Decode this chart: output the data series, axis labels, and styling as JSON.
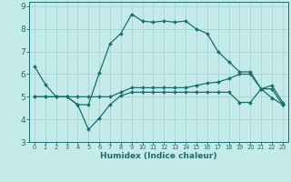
{
  "title": "",
  "xlabel": "Humidex (Indice chaleur)",
  "bg_color": "#c5eaea",
  "grid_color": "#a8d4d4",
  "line_color": "#1a6e6e",
  "xlim": [
    -0.5,
    23.5
  ],
  "ylim": [
    3,
    9.2
  ],
  "xticks": [
    0,
    1,
    2,
    3,
    4,
    5,
    6,
    7,
    8,
    9,
    10,
    11,
    12,
    13,
    14,
    15,
    16,
    17,
    18,
    19,
    20,
    21,
    22,
    23
  ],
  "yticks": [
    3,
    4,
    5,
    6,
    7,
    8,
    9
  ],
  "line1_x": [
    0,
    1,
    2,
    3,
    4,
    5,
    6,
    7,
    8,
    9,
    10,
    11,
    12,
    13,
    14,
    15,
    16,
    17,
    18,
    19,
    20,
    21,
    22,
    23
  ],
  "line1_y": [
    6.35,
    5.55,
    5.0,
    5.0,
    4.65,
    4.65,
    6.05,
    7.35,
    7.8,
    8.65,
    8.35,
    8.3,
    8.35,
    8.3,
    8.35,
    8.0,
    7.8,
    7.0,
    6.55,
    6.1,
    6.1,
    5.35,
    5.35,
    4.65
  ],
  "line2_x": [
    0,
    1,
    2,
    3,
    4,
    5,
    6,
    7,
    8,
    9,
    10,
    11,
    12,
    13,
    14,
    15,
    16,
    17,
    18,
    19,
    20,
    21,
    22,
    23
  ],
  "line2_y": [
    5.0,
    5.0,
    5.0,
    5.0,
    4.65,
    3.55,
    4.05,
    4.65,
    5.05,
    5.2,
    5.2,
    5.2,
    5.2,
    5.2,
    5.2,
    5.2,
    5.2,
    5.2,
    5.2,
    4.75,
    4.75,
    5.35,
    4.95,
    4.65
  ],
  "line3_x": [
    0,
    1,
    2,
    3,
    4,
    5,
    6,
    7,
    8,
    9,
    10,
    11,
    12,
    13,
    14,
    15,
    16,
    17,
    18,
    19,
    20,
    21,
    22,
    23
  ],
  "line3_y": [
    5.0,
    5.0,
    5.0,
    5.0,
    5.0,
    5.0,
    5.0,
    5.0,
    5.2,
    5.4,
    5.4,
    5.4,
    5.4,
    5.4,
    5.4,
    5.5,
    5.6,
    5.65,
    5.8,
    6.0,
    6.0,
    5.35,
    5.5,
    4.75
  ],
  "xlabel_fontsize": 6.5,
  "xtick_fontsize": 4.8,
  "ytick_fontsize": 6.5,
  "marker_size": 2.0,
  "line_width": 0.9
}
